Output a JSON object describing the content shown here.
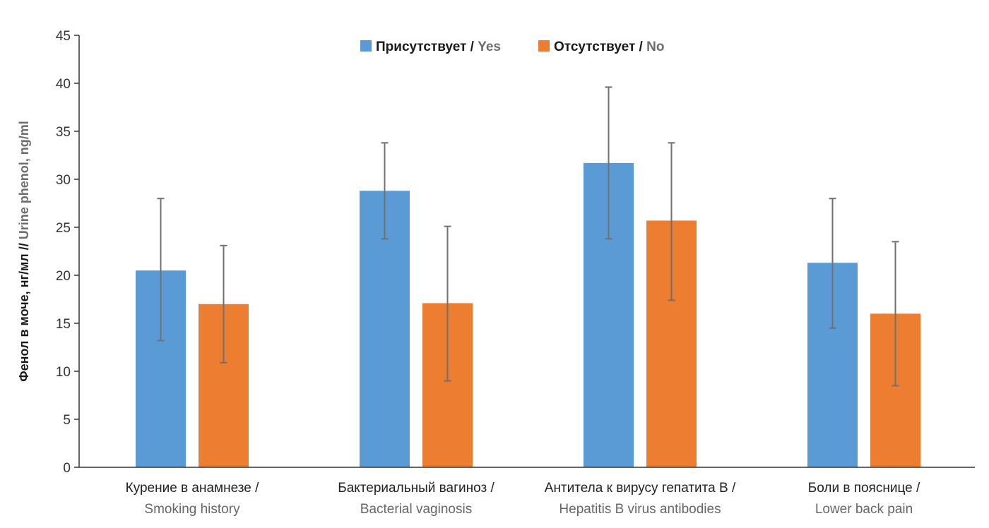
{
  "chart_data": {
    "type": "bar",
    "title": "",
    "ylabel": {
      "ru": "Фенол в моче, нг/мл //",
      "en": " Urine phenol, ng/ml"
    },
    "xlabel": "",
    "ylim": [
      0,
      45
    ],
    "yticks": [
      0,
      5,
      10,
      15,
      20,
      25,
      30,
      35,
      40,
      45
    ],
    "grid": false,
    "legend_position": "top-center",
    "categories": [
      {
        "ru": "Курение в анамнезе /",
        "en": "Smoking history"
      },
      {
        "ru": "Бактериальный вагиноз /",
        "en": "Bacterial vaginosis"
      },
      {
        "ru": "Антитела к вирусу гепатита В /",
        "en": "Hepatitis B virus antibodies"
      },
      {
        "ru": "Боли в пояснице /",
        "en": "Lower back pain"
      }
    ],
    "series": [
      {
        "name_ru": "Присутствует /",
        "name_en": " Yes",
        "color": "#5b9bd5",
        "values": [
          20.5,
          28.8,
          31.7,
          21.3
        ],
        "error_low": [
          13.2,
          23.8,
          23.8,
          14.5
        ],
        "error_high": [
          28.0,
          33.8,
          39.6,
          28.0
        ]
      },
      {
        "name_ru": "Отсутствует /",
        "name_en": " No",
        "color": "#ed7d31",
        "values": [
          17.0,
          17.1,
          25.7,
          16.0
        ],
        "error_low": [
          10.9,
          9.0,
          17.4,
          8.5
        ],
        "error_high": [
          23.1,
          25.1,
          33.8,
          23.5
        ]
      }
    ],
    "error_bar_color": "#707070",
    "axis_color": "#333333"
  }
}
